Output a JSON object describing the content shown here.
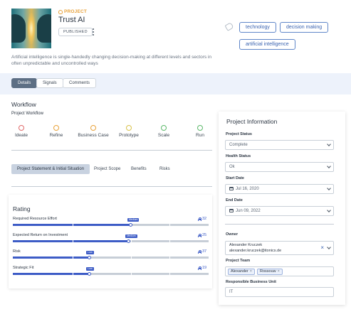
{
  "project": {
    "label": "PROJECT",
    "title": "Trust AI",
    "status_badge": "PUBLISHED",
    "description": "Artificial intelligence is single-handedly changing decision-making at different levels and sectors in often unpredictable and uncontrolled ways",
    "tags": [
      "technology",
      "decision making",
      "artificial intelligence"
    ]
  },
  "view_tabs": [
    "Details",
    "Signals",
    "Comments"
  ],
  "workflow": {
    "heading": "Workflow",
    "subheading": "Project Workflow",
    "stages": [
      {
        "label": "Ideate",
        "color": "#e06a6a"
      },
      {
        "label": "Refine",
        "color": "#e8a23a"
      },
      {
        "label": "Business Case",
        "color": "#e8a23a"
      },
      {
        "label": "Prototype",
        "color": "#d8c24a"
      },
      {
        "label": "Scale",
        "color": "#5cb86a"
      },
      {
        "label": "Run",
        "color": "#5cb86a"
      }
    ]
  },
  "project_tabs": [
    "Project Statement & Initial Situation",
    "Project Scope",
    "Benefits",
    "Risks"
  ],
  "rating": {
    "heading": "Rating",
    "items": [
      {
        "label": "Required Resource Effort",
        "value": 0.6,
        "bubble": "Medium",
        "count": "32"
      },
      {
        "label": "Expected Return on Investment",
        "value": 0.59,
        "bubble": "Medium",
        "count": "25"
      },
      {
        "label": "Risk",
        "value": 0.39,
        "bubble": "Low",
        "count": "37"
      },
      {
        "label": "Strategic Fit",
        "value": 0.39,
        "bubble": "Low",
        "count": "19"
      }
    ]
  },
  "project_info": {
    "heading": "Project Information",
    "status_label": "Project Status",
    "status_value": "Complete",
    "health_label": "Health Status",
    "health_value": "Ok",
    "start_label": "Start Date",
    "start_value": "Jul 16, 2020",
    "end_label": "End Date",
    "end_value": "Jun 09, 2022",
    "owner_label": "Owner",
    "owner_name": "Alexander Kruczek",
    "owner_email": "alexander.kruczek@itonics.de",
    "team_label": "Project Team",
    "team": [
      "Alexander",
      "Rossouw"
    ],
    "unit_label": "Responsible Business Unit",
    "unit_value": "IT"
  },
  "colors": {
    "accent": "#3d5cc6",
    "project_label": "#e8a23a",
    "tab_active": "#5d6f84",
    "band": "#edf2fb"
  }
}
